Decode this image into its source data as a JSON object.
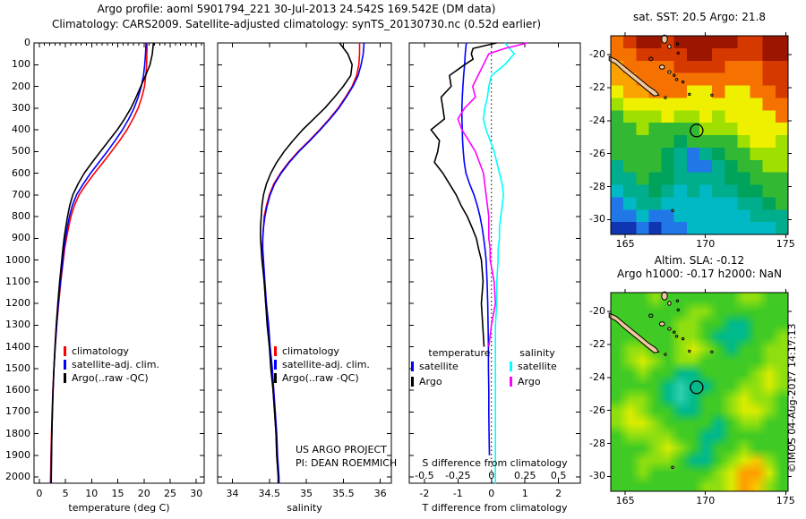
{
  "header": {
    "line1": "Argo profile: aoml 5901794_221 30-Jul-2013 24.542S 169.542E (DM data)",
    "line2": "Climatology: CARS2009. Satellite-adjusted climatology: synTS_20130730.nc (0.52d earlier)"
  },
  "chart_data": [
    {
      "id": "temperature-profile",
      "type": "line",
      "xlabel": "temperature (deg C)",
      "xlim": [
        -1,
        31.5
      ],
      "xtick_values": [
        0,
        5,
        10,
        15,
        20,
        25,
        30
      ],
      "xtick_labels": [
        "0",
        "5",
        "10",
        "15",
        "20",
        "25",
        "30"
      ],
      "top_minor_step": 1,
      "ylim": [
        0,
        2030
      ],
      "yticks": [
        0,
        100,
        200,
        300,
        400,
        500,
        600,
        700,
        800,
        900,
        1000,
        1100,
        1200,
        1300,
        1400,
        1500,
        1600,
        1700,
        1800,
        1900,
        2000
      ],
      "legend": [
        {
          "label": "climatology",
          "color": "#ff0000"
        },
        {
          "label": "satellite-adj. clim.",
          "color": "#0000ff"
        },
        {
          "label": "Argo(..raw -QC)",
          "color": "#000000"
        }
      ],
      "depth": [
        0,
        50,
        100,
        150,
        200,
        250,
        300,
        350,
        400,
        450,
        500,
        550,
        600,
        650,
        700,
        750,
        800,
        850,
        900,
        950,
        1000,
        1100,
        1200,
        1300,
        1400,
        1500,
        1600,
        1700,
        1800,
        1900,
        2000,
        2050
      ],
      "series": [
        {
          "name": "climatology",
          "color": "#ff0000",
          "values": [
            20.6,
            20.55,
            20.5,
            20.35,
            20.1,
            19.6,
            18.9,
            17.9,
            16.75,
            15.35,
            13.8,
            12.2,
            10.55,
            9.0,
            7.6,
            6.7,
            6.05,
            5.6,
            5.2,
            4.85,
            4.6,
            4.12,
            3.7,
            3.35,
            3.05,
            2.8,
            2.6,
            2.45,
            2.33,
            2.24,
            2.16,
            2.12
          ]
        },
        {
          "name": "satellite-adj. clim.",
          "color": "#0000ff",
          "values": [
            20.4,
            20.3,
            20.15,
            19.9,
            19.5,
            18.9,
            18.1,
            17.1,
            15.9,
            14.5,
            13.0,
            11.4,
            9.8,
            8.4,
            7.1,
            6.3,
            5.75,
            5.35,
            5.0,
            4.7,
            4.5,
            4.05,
            3.65,
            3.32,
            3.04,
            2.82,
            2.63,
            2.5,
            2.4,
            2.32,
            2.26,
            2.24
          ]
        },
        {
          "name": "Argo(..raw -QC)",
          "color": "#000000",
          "values": [
            21.8,
            21.6,
            21.15,
            20.3,
            19.4,
            18.5,
            17.5,
            16.3,
            14.9,
            13.3,
            11.7,
            10.1,
            8.6,
            7.4,
            6.4,
            5.8,
            5.4,
            5.05,
            4.75,
            4.5,
            4.3,
            3.9,
            3.55,
            3.25,
            3.0,
            2.8,
            2.65,
            2.5,
            2.4,
            2.35,
            2.3,
            2.28
          ]
        }
      ]
    },
    {
      "id": "salinity-profile",
      "type": "line",
      "xlabel": "salinity",
      "xlim": [
        33.8,
        36.15
      ],
      "xtick_values": [
        34,
        34.5,
        35,
        35.5,
        36
      ],
      "xtick_labels": [
        "34",
        "34.5",
        "35",
        "35.5",
        "36"
      ],
      "ylim": [
        0,
        2030
      ],
      "legend": [
        {
          "label": "climatology",
          "color": "#ff0000"
        },
        {
          "label": "satellite-adj. clim.",
          "color": "#0000ff"
        },
        {
          "label": "Argo(..raw -QC)",
          "color": "#000000"
        }
      ],
      "annotation": {
        "line1": "US ARGO PROJECT",
        "line2": "PI: DEAN ROEMMICH"
      },
      "depth": [
        0,
        50,
        100,
        150,
        200,
        250,
        300,
        350,
        400,
        450,
        500,
        550,
        600,
        650,
        700,
        750,
        800,
        850,
        900,
        950,
        1000,
        1100,
        1200,
        1300,
        1400,
        1500,
        1600,
        1700,
        1800,
        1900,
        2000,
        2050
      ],
      "series": [
        {
          "name": "climatology",
          "color": "#ff0000",
          "values": [
            35.72,
            35.72,
            35.71,
            35.68,
            35.62,
            35.53,
            35.43,
            35.31,
            35.18,
            35.04,
            34.89,
            34.76,
            34.65,
            34.56,
            34.5,
            34.46,
            34.43,
            34.42,
            34.41,
            34.4,
            34.41,
            34.43,
            34.45,
            34.48,
            34.5,
            34.53,
            34.55,
            34.57,
            34.59,
            34.6,
            34.62,
            34.62
          ]
        },
        {
          "name": "satellite-adj. clim.",
          "color": "#0000ff",
          "values": [
            35.78,
            35.77,
            35.74,
            35.7,
            35.63,
            35.54,
            35.44,
            35.32,
            35.19,
            35.05,
            34.9,
            34.77,
            34.66,
            34.57,
            34.51,
            34.47,
            34.44,
            34.42,
            34.41,
            34.41,
            34.42,
            34.44,
            34.46,
            34.49,
            34.51,
            34.54,
            34.56,
            34.58,
            34.6,
            34.61,
            34.63,
            34.63
          ]
        },
        {
          "name": "Argo(..raw -QC)",
          "color": "#000000",
          "values": [
            35.45,
            35.56,
            35.62,
            35.6,
            35.5,
            35.38,
            35.25,
            35.1,
            34.95,
            34.82,
            34.7,
            34.6,
            34.52,
            34.46,
            34.42,
            34.4,
            34.39,
            34.38,
            34.38,
            34.39,
            34.4,
            34.43,
            34.45,
            34.47,
            34.5,
            34.52,
            34.55,
            34.57,
            34.59,
            34.6,
            34.62,
            34.62
          ]
        }
      ]
    },
    {
      "id": "difference-profile",
      "type": "line",
      "xlabel": "T difference from climatology",
      "xlim": [
        -2.45,
        2.65
      ],
      "xtick_values": [
        -2,
        -1,
        0,
        1,
        2
      ],
      "xtick_labels": [
        "-2",
        "-1",
        "0",
        "1",
        "2"
      ],
      "ylim": [
        0,
        2030
      ],
      "zero_line": true,
      "s_axis": {
        "title": "S difference from climatology",
        "tick_labels": [
          "-0.5",
          "-0.25",
          "0",
          "0.25",
          "0.5"
        ],
        "s_per_t": 0.25
      },
      "legend_groups": [
        {
          "header": "temperature",
          "items": [
            {
              "label": "satellite",
              "color": "#0000ff"
            },
            {
              "label": "Argo",
              "color": "#000000"
            }
          ]
        },
        {
          "header": "salinity",
          "items": [
            {
              "label": "satellite",
              "color": "#00ffff"
            },
            {
              "label": "Argo",
              "color": "#ff00ff"
            }
          ]
        }
      ],
      "series": [
        {
          "name": "satellite T diff",
          "color": "#0000ff",
          "scale": "t",
          "depth": [
            0,
            50,
            100,
            150,
            200,
            250,
            300,
            350,
            400,
            450,
            500,
            550,
            600,
            650,
            700,
            750,
            800,
            850,
            900,
            950,
            1000,
            1100,
            1200,
            1300,
            1400,
            1500,
            1600,
            1700,
            1800,
            1900
          ],
          "values": [
            -0.75,
            -0.78,
            -0.8,
            -0.83,
            -0.85,
            -0.87,
            -0.88,
            -0.88,
            -0.87,
            -0.86,
            -0.84,
            -0.81,
            -0.76,
            -0.65,
            -0.52,
            -0.42,
            -0.34,
            -0.28,
            -0.23,
            -0.19,
            -0.16,
            -0.13,
            -0.11,
            -0.1,
            -0.09,
            -0.09,
            -0.08,
            -0.08,
            -0.07,
            -0.06
          ]
        },
        {
          "name": "Argo T diff",
          "color": "#000000",
          "scale": "t",
          "depth": [
            0,
            25,
            50,
            75,
            100,
            150,
            200,
            250,
            300,
            350,
            400,
            450,
            500,
            550,
            600,
            650,
            700,
            750,
            800,
            850,
            900,
            950,
            1000,
            1100,
            1200,
            1300,
            1400
          ],
          "values": [
            0.15,
            -0.55,
            -0.6,
            -0.55,
            -0.8,
            -1.25,
            -1.2,
            -1.5,
            -1.45,
            -1.4,
            -1.8,
            -1.55,
            -1.6,
            -1.7,
            -1.45,
            -1.25,
            -1.05,
            -0.9,
            -0.72,
            -0.58,
            -0.45,
            -0.38,
            -0.3,
            -0.25,
            -0.3,
            -0.26,
            -0.22
          ]
        },
        {
          "name": "satellite S diff",
          "color": "#00ffff",
          "scale": "s",
          "depth": [
            0,
            50,
            100,
            150,
            200,
            250,
            300,
            350,
            400,
            450,
            500,
            550,
            600,
            650,
            700,
            750,
            800,
            850,
            900,
            950,
            1000,
            1100,
            1200,
            1300,
            1400,
            1500,
            1600,
            1700,
            1800,
            1900,
            2000,
            2050
          ],
          "values": [
            0.1,
            0.17,
            0.1,
            0.0,
            -0.02,
            -0.03,
            -0.05,
            -0.06,
            -0.04,
            -0.01,
            0.02,
            0.04,
            0.06,
            0.08,
            0.09,
            0.08,
            0.07,
            0.06,
            0.06,
            0.05,
            0.05,
            0.04,
            0.04,
            0.03,
            0.03,
            0.03,
            0.03,
            0.03,
            0.03,
            0.03,
            0.03,
            0.03
          ]
        },
        {
          "name": "Argo S diff",
          "color": "#ff00ff",
          "scale": "s",
          "depth": [
            0,
            25,
            50,
            75,
            100,
            150,
            200,
            250,
            300,
            350,
            400,
            450,
            500,
            550,
            600,
            650,
            700,
            750,
            800,
            850,
            900,
            950,
            1000,
            1100,
            1200,
            1300,
            1400
          ],
          "values": [
            0.27,
            0.1,
            -0.02,
            -0.04,
            -0.06,
            -0.1,
            -0.14,
            -0.12,
            -0.2,
            -0.25,
            -0.22,
            -0.17,
            -0.12,
            -0.09,
            -0.06,
            -0.05,
            -0.04,
            -0.03,
            -0.02,
            -0.02,
            -0.02,
            -0.01,
            -0.01,
            0.02,
            0.03,
            0.0,
            -0.02
          ]
        }
      ]
    },
    {
      "id": "sst-map",
      "type": "heatmap",
      "title": "sat. SST: 20.5 Argo: 21.8",
      "lon_range": [
        164.1,
        175.15
      ],
      "lat_range": [
        -18.85,
        -30.9
      ],
      "xtick_values": [
        165,
        170,
        175
      ],
      "xtick_labels": [
        "165",
        "170",
        "175"
      ],
      "ytick_values": [
        -20,
        -22,
        -24,
        -26,
        -28,
        -30
      ],
      "ytick_labels": [
        "-20",
        "-22",
        "-24",
        "-26",
        "-28",
        "-30"
      ],
      "render": "pixelated",
      "palette": {
        "R": "#9b1500",
        "r": "#d63900",
        "o": "#f57200",
        "O": "#f9a200",
        "y": "#eff000",
        "g": "#9fe000",
        "G": "#33b833",
        "n": "#00a35c",
        "t": "#00ad8d",
        "c": "#00b9c4",
        "b": "#2277e8",
        "B": "#0f35b0"
      },
      "grid": [
        "orRRrRRRRRrrRR",
        "oorrrrRRrrrrRR",
        "Ooooorrrrooorr",
        "OOoooooooooorr",
        "yOOoooyyoyyoor",
        "gyyyyyyyyyyyoo",
        "Ggggyggygyyyyo",
        "GGgGGGGgggyyyy",
        "GGGGGnGGGGgyyg",
        "GGGGntbtnGGggg",
        "tGGGntbbtnGGgg",
        "ttGnnttttnnGGG",
        "cttntctcttnnGG",
        "bcttccccccttnG",
        "bbcbbccccccttt",
        "BBbBbbccccccct"
      ],
      "land": {
        "color": "#f0c8a0",
        "main": [
          [
            164.0,
            -20.1
          ],
          [
            164.45,
            -20.3
          ],
          [
            164.95,
            -20.7
          ],
          [
            165.45,
            -21.1
          ],
          [
            165.95,
            -21.5
          ],
          [
            166.45,
            -21.9
          ],
          [
            166.9,
            -22.2
          ],
          [
            167.1,
            -22.45
          ],
          [
            166.8,
            -22.5
          ],
          [
            166.35,
            -22.15
          ],
          [
            165.85,
            -21.75
          ],
          [
            165.35,
            -21.35
          ],
          [
            164.85,
            -20.95
          ],
          [
            164.4,
            -20.55
          ],
          [
            164.0,
            -20.35
          ]
        ],
        "islands": [
          [
            167.45,
            -19.05,
            0.18,
            0.25,
            1
          ],
          [
            167.75,
            -19.5,
            0.1,
            0.12,
            1
          ],
          [
            168.25,
            -19.35,
            0.06,
            0.06,
            0
          ],
          [
            168.3,
            -19.9,
            0.05,
            0.05,
            0
          ],
          [
            166.6,
            -20.25,
            0.12,
            0.1,
            0
          ],
          [
            167.3,
            -20.75,
            0.16,
            0.12,
            1
          ],
          [
            167.75,
            -21.05,
            0.1,
            0.08,
            1
          ],
          [
            168.05,
            -21.25,
            0.06,
            0.05,
            0
          ],
          [
            168.2,
            -21.5,
            0.07,
            0.06,
            1
          ],
          [
            168.6,
            -21.65,
            0.05,
            0.05,
            0
          ],
          [
            167.5,
            -22.6,
            0.04,
            0.04,
            1
          ],
          [
            169.0,
            -22.4,
            0.03,
            0.03,
            1
          ],
          [
            170.4,
            -22.45,
            0.03,
            0.03,
            1
          ],
          [
            167.95,
            -29.45,
            0.05,
            0.04,
            1
          ]
        ]
      },
      "marker": {
        "lon": 169.45,
        "lat": -24.6
      }
    },
    {
      "id": "sla-map",
      "type": "heatmap",
      "title_line1": "Altim. SLA: -0.12",
      "title_line2": "Argo h1000: -0.17 h2000: NaN",
      "credit": "©IMOS 04-Aug-2017 14:17:13",
      "lon_range": [
        164.1,
        175.15
      ],
      "lat_range": [
        -18.85,
        -30.9
      ],
      "xtick_values": [
        165,
        170,
        175
      ],
      "xtick_labels": [
        "165",
        "170",
        "175"
      ],
      "ytick_values": [
        -20,
        -22,
        -24,
        -26,
        -28,
        -30
      ],
      "ytick_labels": [
        "-20",
        "-22",
        "-24",
        "-26",
        "-28",
        "-30"
      ],
      "render": "auto",
      "palette": {
        "G": "#3fca25",
        "g": "#8fdf10",
        "y": "#d9ec00",
        "t": "#00b98d",
        "c": "#2fd0b0",
        "O": "#ff9d00",
        "o": "#f7c900"
      },
      "grid": [
        "GGGgGGGGGGggGG",
        "GGGGGGggGGGGGG",
        "GGGGGggGGttGGG",
        "GGGGGggGtttGGg",
        "GggGGgygGtGGgg",
        "GgygGggGGGGGgg",
        "GGgGGttGGGGgyg",
        "GGGGtcttGGggyg",
        "GggGtctGGgyggG",
        "gygGGttGGgyygG",
        "gyygGGGGtGggGG",
        "GggggGGttGGGGG",
        "GGGgygGtGGgGGG",
        "GGgggGttGgyogG",
        "GGgGGGGGgyOOyG",
        "GGGGGGGggyOogG"
      ],
      "marker": {
        "lon": 169.45,
        "lat": -24.6
      }
    }
  ]
}
